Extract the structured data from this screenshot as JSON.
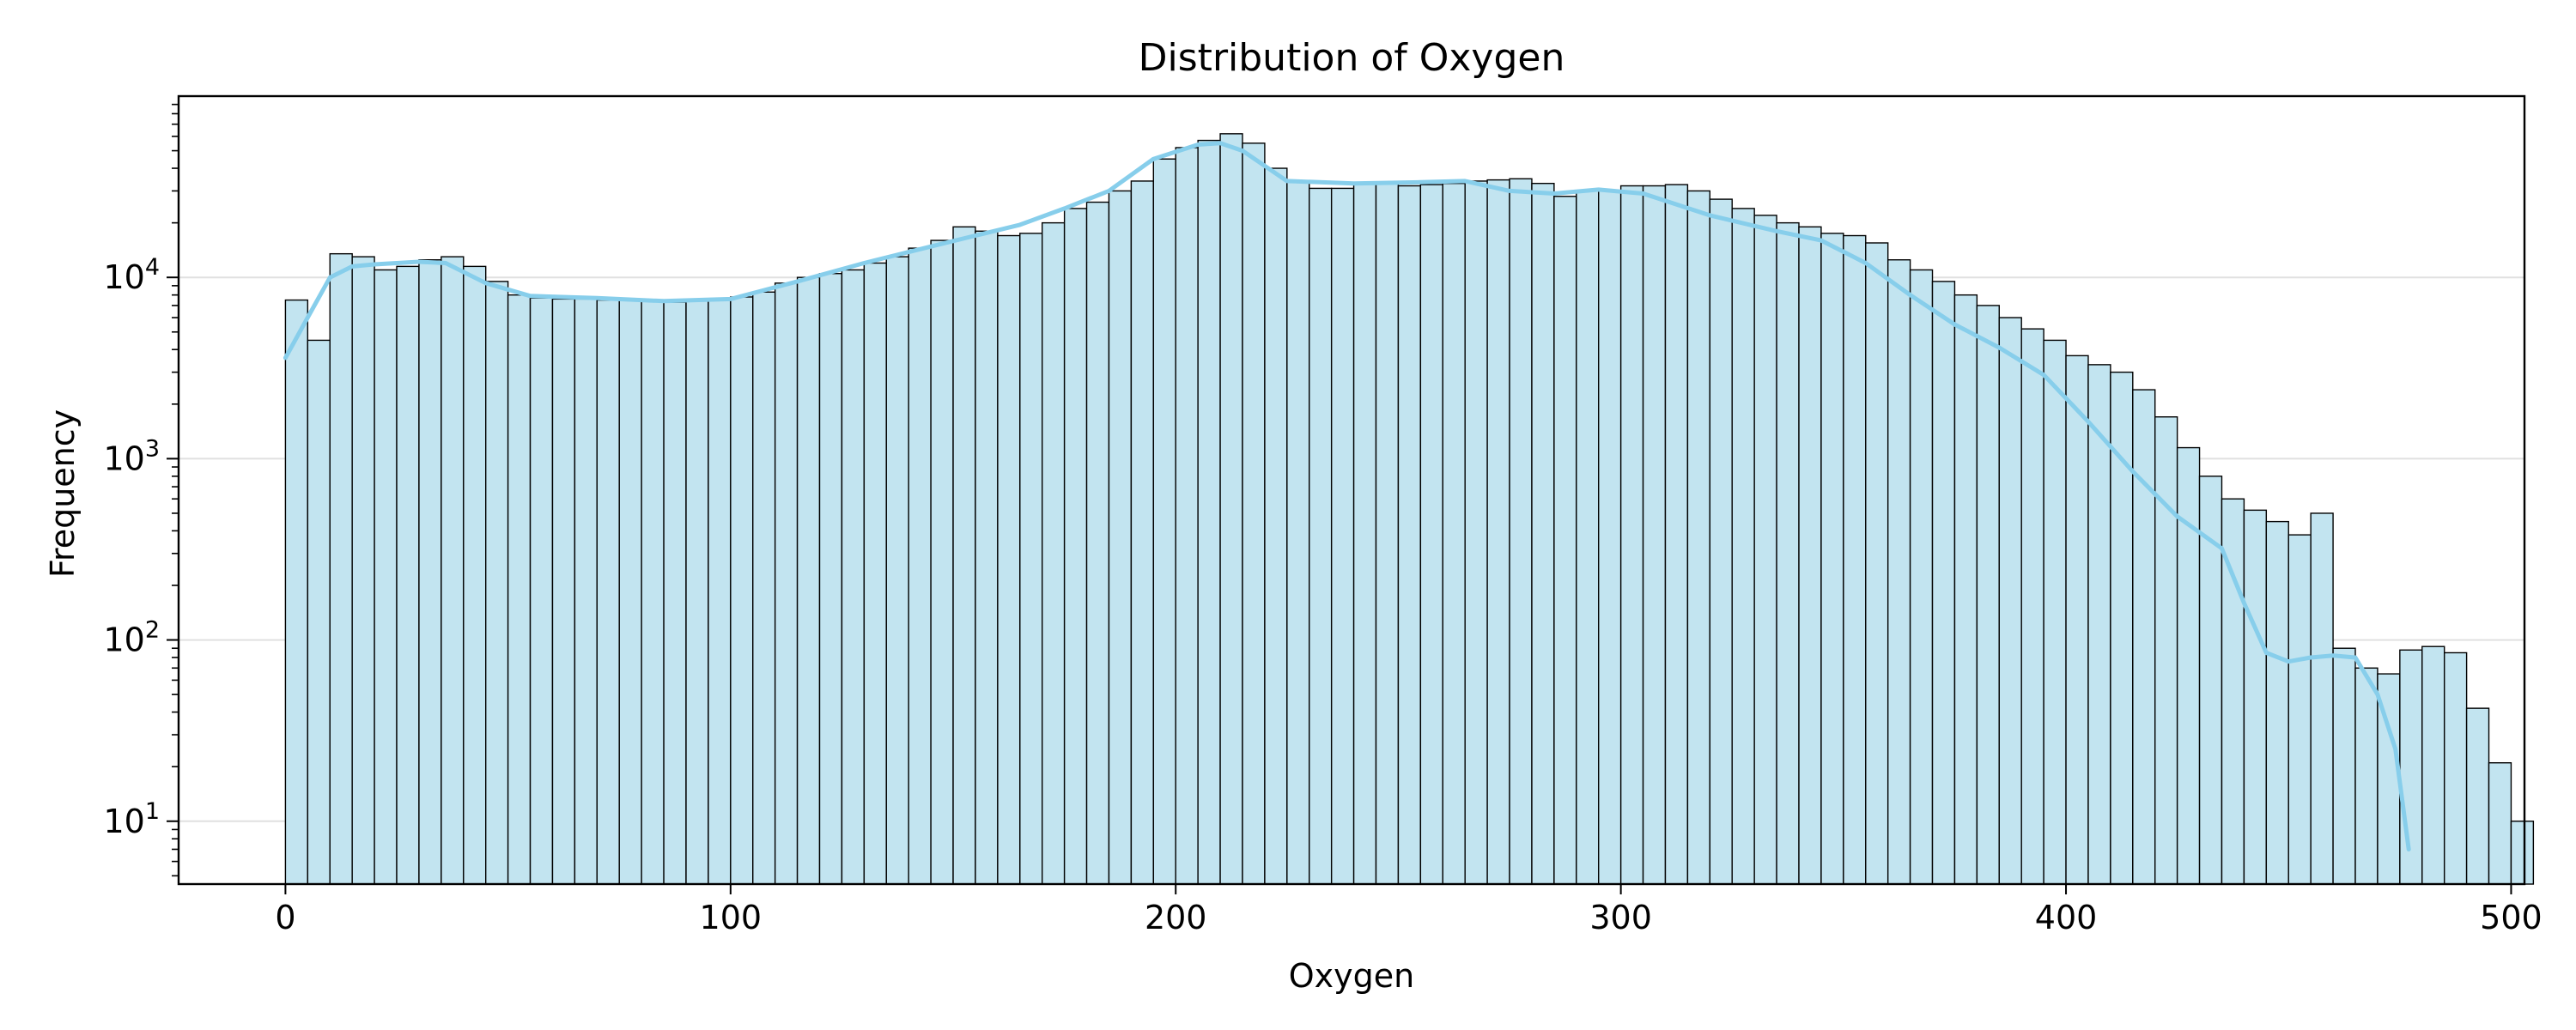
{
  "chart_data": {
    "type": "bar",
    "title": "Distribution of Oxygen",
    "xlabel": "Oxygen",
    "ylabel": "Frequency",
    "xlim": [
      -24,
      503
    ],
    "ylim": [
      4.5,
      100000
    ],
    "yscale": "log",
    "grid": "y-major",
    "x_ticks": [
      0,
      100,
      200,
      300,
      400,
      500
    ],
    "y_ticks": [
      {
        "value": 10,
        "base": "10",
        "exp": "1"
      },
      {
        "value": 100,
        "base": "10",
        "exp": "2"
      },
      {
        "value": 1000,
        "base": "10",
        "exp": "3"
      },
      {
        "value": 10000,
        "base": "10",
        "exp": "4"
      }
    ],
    "bin_start": 0,
    "bin_width": 5,
    "values": [
      7500,
      4500,
      13500,
      13000,
      11000,
      11500,
      12500,
      13000,
      11500,
      9500,
      8000,
      7700,
      7600,
      7600,
      7500,
      7500,
      7400,
      7300,
      7400,
      7600,
      7800,
      8300,
      9300,
      10000,
      10500,
      11000,
      12000,
      13000,
      14500,
      16000,
      19000,
      18000,
      17000,
      17500,
      20000,
      24000,
      26000,
      30000,
      34000,
      45000,
      52000,
      57000,
      62000,
      55000,
      40000,
      34000,
      31000,
      31000,
      33000,
      33000,
      32000,
      32500,
      33000,
      34000,
      34500,
      35000,
      33000,
      28000,
      30000,
      30000,
      32000,
      32000,
      32500,
      30000,
      27000,
      24000,
      22000,
      20000,
      19000,
      17500,
      17000,
      15500,
      12500,
      11000,
      9500,
      8000,
      7000,
      6000,
      5200,
      4500,
      3700,
      3300,
      3000,
      2400,
      1700,
      1150,
      800,
      600,
      520,
      450,
      380,
      500,
      90,
      70,
      65,
      88,
      92,
      85,
      42,
      21,
      10
    ],
    "kde": {
      "color": "#87ceeb",
      "x": [
        0,
        5,
        10,
        15,
        20,
        30,
        36,
        45,
        55,
        70,
        85,
        100,
        115,
        130,
        145,
        155,
        165,
        175,
        185,
        195,
        205,
        210,
        215,
        225,
        240,
        255,
        265,
        275,
        285,
        295,
        305,
        320,
        335,
        345,
        355,
        365,
        375,
        385,
        395,
        405,
        415,
        425,
        435,
        440,
        445,
        450,
        455,
        460,
        465,
        470,
        474,
        477
      ],
      "y": [
        3600,
        6000,
        10000,
        11500,
        11800,
        12200,
        12000,
        9300,
        7900,
        7700,
        7400,
        7600,
        9500,
        12000,
        14800,
        17000,
        19500,
        24000,
        30000,
        45000,
        54000,
        55000,
        50000,
        34000,
        33000,
        33500,
        34000,
        30000,
        29000,
        30500,
        29000,
        22000,
        18000,
        16000,
        12000,
        8000,
        5500,
        4100,
        2900,
        1600,
        850,
        480,
        320,
        160,
        85,
        76,
        80,
        82,
        80,
        50,
        25,
        7
      ]
    },
    "colors": {
      "bar_fill": "#c2e4f0",
      "bar_edge": "#000000",
      "kde_line": "#87ceeb",
      "grid": "#e0e0e0"
    }
  }
}
